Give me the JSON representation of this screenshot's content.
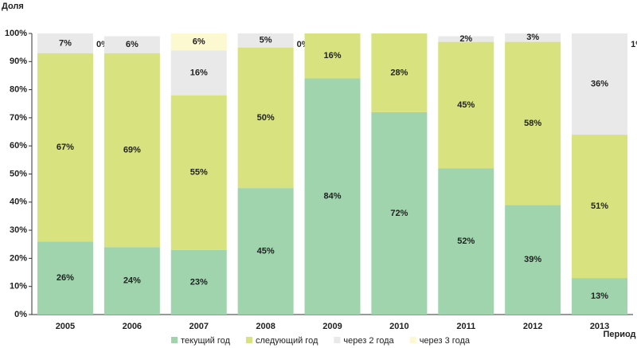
{
  "chart_data": {
    "type": "stacked_bar",
    "y_label": "Доля",
    "x_label": "Период",
    "categories": [
      "2005",
      "2006",
      "2007",
      "2008",
      "2009",
      "2010",
      "2011",
      "2012",
      "2013"
    ],
    "series": [
      {
        "name": "текущий год",
        "color": "#9fd4ad",
        "values": [
          26,
          24,
          23,
          45,
          84,
          72,
          52,
          39,
          13
        ],
        "value_labels": [
          "26%",
          "24%",
          "23%",
          "45%",
          "84%",
          "72%",
          "52%",
          "39%",
          "13%"
        ]
      },
      {
        "name": "следующий год",
        "color": "#d8e27f",
        "values": [
          67,
          69,
          55,
          50,
          16,
          28,
          45,
          58,
          51
        ],
        "value_labels": [
          "67%",
          "69%",
          "55%",
          "50%",
          "16%",
          "28%",
          "45%",
          "58%",
          "51%"
        ]
      },
      {
        "name": "через 2 года",
        "color": "#e9e9e9",
        "values": [
          7,
          6,
          16,
          5,
          null,
          null,
          2,
          3,
          36
        ],
        "value_labels": [
          "7%",
          "6%",
          "16%",
          "5%",
          null,
          null,
          "2%",
          "3%",
          "36%"
        ]
      },
      {
        "name": "через 3 года",
        "color": "#fcf8cf",
        "values": [
          0,
          null,
          6,
          0,
          null,
          null,
          null,
          null,
          1
        ],
        "value_labels": [
          "0%",
          null,
          "6%",
          "0%",
          null,
          null,
          null,
          null,
          "1%"
        ]
      }
    ],
    "ylim": [
      0,
      100
    ],
    "yticks": [
      {
        "value": 0,
        "label": "0%"
      },
      {
        "value": 10,
        "label": "10%"
      },
      {
        "value": 20,
        "label": "20%"
      },
      {
        "value": 30,
        "label": "30%"
      },
      {
        "value": 40,
        "label": "40%"
      },
      {
        "value": 50,
        "label": "50%"
      },
      {
        "value": 60,
        "label": "60%"
      },
      {
        "value": 70,
        "label": "70%"
      },
      {
        "value": 80,
        "label": "80%"
      },
      {
        "value": 90,
        "label": "90%"
      },
      {
        "value": 100,
        "label": "100%"
      }
    ],
    "legend": "bottom"
  }
}
